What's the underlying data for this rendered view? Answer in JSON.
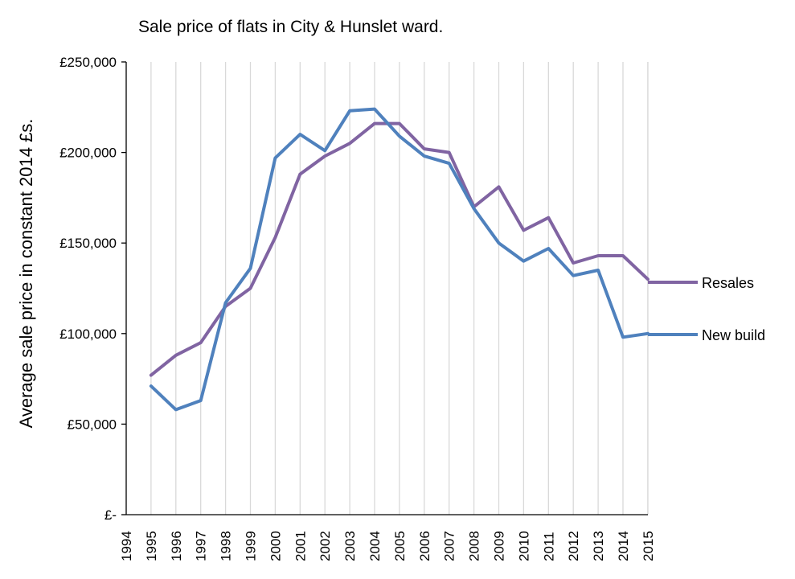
{
  "chart_data": {
    "type": "line",
    "title": "Sale price of flats in City & Hunslet ward.",
    "xlabel": "",
    "ylabel": "Average sale price in constant 2014 £s.",
    "categories": [
      "1994",
      "1995",
      "1996",
      "1997",
      "1998",
      "1999",
      "2000",
      "2001",
      "2002",
      "2003",
      "2004",
      "2005",
      "2006",
      "2007",
      "2008",
      "2009",
      "2010",
      "2011",
      "2012",
      "2013",
      "2014",
      "2015"
    ],
    "ylim": [
      0,
      250000
    ],
    "yticks": [
      0,
      50000,
      100000,
      150000,
      200000,
      250000
    ],
    "ytick_labels": [
      "£-",
      "£50,000",
      "£100,000",
      "£150,000",
      "£200,000",
      "£250,000"
    ],
    "grid": "vertical",
    "legend": "right",
    "series": [
      {
        "name": "Resales",
        "color": "#8064a2",
        "x": [
          "1995",
          "1996",
          "1997",
          "1998",
          "1999",
          "2000",
          "2001",
          "2002",
          "2003",
          "2004",
          "2005",
          "2006",
          "2007",
          "2008",
          "2009",
          "2010",
          "2011",
          "2012",
          "2013",
          "2014",
          "2015"
        ],
        "values": [
          77000,
          88000,
          95000,
          115000,
          125000,
          153000,
          188000,
          198000,
          205000,
          216000,
          216000,
          202000,
          200000,
          170000,
          181000,
          157000,
          164000,
          139000,
          143000,
          143000,
          130000
        ]
      },
      {
        "name": "New build",
        "color": "#4f81bd",
        "x": [
          "1995",
          "1996",
          "1997",
          "1998",
          "1999",
          "2000",
          "2001",
          "2002",
          "2003",
          "2004",
          "2005",
          "2006",
          "2007",
          "2008",
          "2009",
          "2010",
          "2011",
          "2012",
          "2013",
          "2014",
          "2015"
        ],
        "values": [
          71000,
          58000,
          63000,
          117000,
          136000,
          197000,
          210000,
          201000,
          223000,
          224000,
          209000,
          198000,
          194000,
          169000,
          150000,
          140000,
          147000,
          132000,
          135000,
          98000,
          100000
        ]
      }
    ]
  }
}
